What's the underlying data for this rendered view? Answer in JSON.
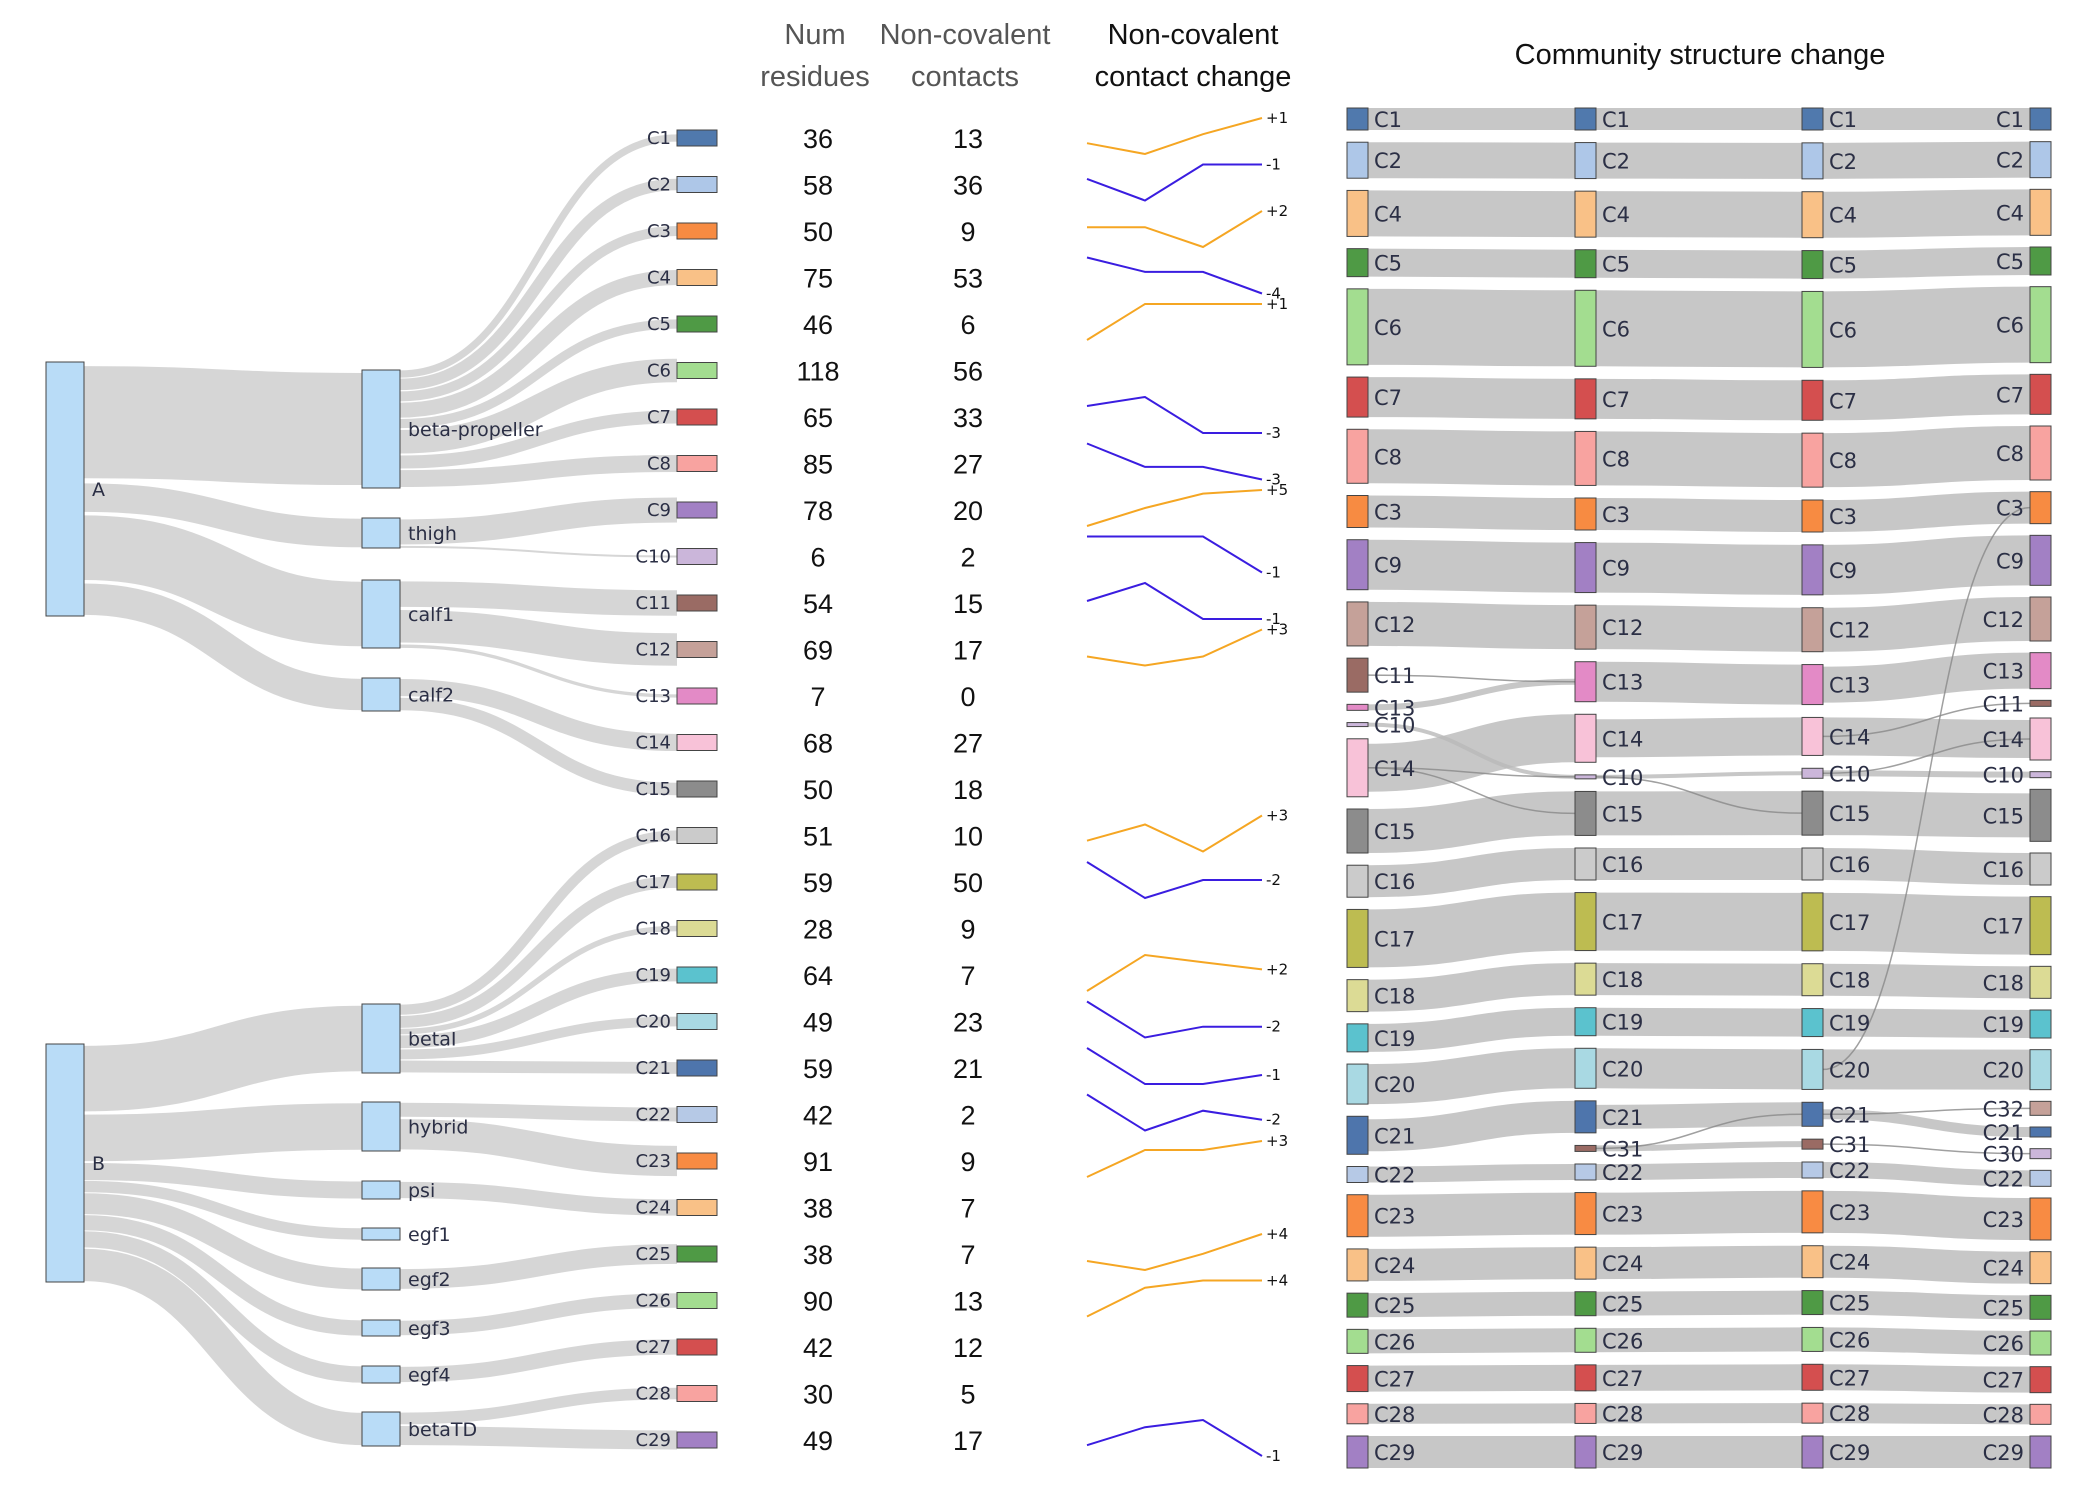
{
  "headers": {
    "num_residues": [
      "Num",
      "residues"
    ],
    "contacts": [
      "Non-covalent",
      "contacts"
    ],
    "change": [
      "Non-covalent",
      "contact change"
    ],
    "community": "Community structure change"
  },
  "chains": [
    {
      "name": "A",
      "domains": [
        "beta-propeller",
        "thigh",
        "calf1",
        "calf2"
      ]
    },
    {
      "name": "B",
      "domains": [
        "betaI",
        "hybrid",
        "psi",
        "egf1",
        "egf2",
        "egf3",
        "egf4",
        "betaTD"
      ]
    }
  ],
  "communities": [
    {
      "id": "C1",
      "domain": "beta-propeller",
      "residues": 36,
      "contacts": 13,
      "change": "+1",
      "trend": [
        0.3,
        0.0,
        0.55,
        1.0
      ],
      "color": "#5079ad"
    },
    {
      "id": "C2",
      "domain": "beta-propeller",
      "residues": 58,
      "contacts": 36,
      "change": "-1",
      "trend": [
        0.6,
        0.0,
        1.0,
        1.0
      ],
      "color": "#aec7e8"
    },
    {
      "id": "C3",
      "domain": "beta-propeller",
      "residues": 50,
      "contacts": 9,
      "change": "+2",
      "trend": [
        0.55,
        0.55,
        0.0,
        1.0
      ],
      "color": "#f78b42"
    },
    {
      "id": "C4",
      "domain": "beta-propeller",
      "residues": 75,
      "contacts": 53,
      "change": "-4",
      "trend": [
        1.0,
        0.6,
        0.6,
        0.0
      ],
      "color": "#f9c187"
    },
    {
      "id": "C5",
      "domain": "beta-propeller",
      "residues": 46,
      "contacts": 6,
      "change": "+1",
      "trend": [
        0.0,
        1.0,
        1.0,
        1.0
      ],
      "color": "#4f9a45"
    },
    {
      "id": "C6",
      "domain": "beta-propeller",
      "residues": 118,
      "contacts": 56,
      "change": "",
      "trend": [],
      "color": "#a3dd90"
    },
    {
      "id": "C7",
      "domain": "beta-propeller",
      "residues": 65,
      "contacts": 33,
      "change": "-3",
      "trend": [
        0.75,
        1.0,
        0.0,
        0.0
      ],
      "color": "#d44f4f"
    },
    {
      "id": "C8",
      "domain": "beta-propeller",
      "residues": 85,
      "contacts": 27,
      "change": "-3",
      "trend": [
        1.0,
        0.35,
        0.35,
        0.0
      ],
      "color": "#f8a3a0"
    },
    {
      "id": "C9",
      "domain": "thigh",
      "residues": 78,
      "contacts": 20,
      "change": "+5",
      "trend": [
        0.0,
        0.5,
        0.9,
        1.0
      ],
      "color": "#a280c4"
    },
    {
      "id": "C10",
      "domain": "thigh",
      "residues": 6,
      "contacts": 2,
      "change": "-1",
      "trend": [
        1.0,
        1.0,
        1.0,
        0.0
      ],
      "color": "#cbb6da"
    },
    {
      "id": "C11",
      "domain": "calf1",
      "residues": 54,
      "contacts": 15,
      "change": "-1",
      "trend": [
        0.5,
        1.0,
        0.0,
        0.0
      ],
      "color": "#9a6b64"
    },
    {
      "id": "C12",
      "domain": "calf1",
      "residues": 69,
      "contacts": 17,
      "change": "+3",
      "trend": [
        0.25,
        0.0,
        0.25,
        1.0
      ],
      "color": "#c5a199"
    },
    {
      "id": "C13",
      "domain": "calf1",
      "residues": 7,
      "contacts": 0,
      "change": "",
      "trend": [],
      "color": "#e38ac6"
    },
    {
      "id": "C14",
      "domain": "calf2",
      "residues": 68,
      "contacts": 27,
      "change": "",
      "trend": [],
      "color": "#f8c2d8"
    },
    {
      "id": "C15",
      "domain": "calf2",
      "residues": 50,
      "contacts": 18,
      "change": "",
      "trend": [],
      "color": "#8c8c8c"
    },
    {
      "id": "C16",
      "domain": "betaI",
      "residues": 51,
      "contacts": 10,
      "change": "+3",
      "trend": [
        0.3,
        0.75,
        0.0,
        1.0
      ],
      "color": "#cbcbcb"
    },
    {
      "id": "C17",
      "domain": "betaI",
      "residues": 59,
      "contacts": 50,
      "change": "-2",
      "trend": [
        1.0,
        0.0,
        0.5,
        0.5
      ],
      "color": "#bdbc51"
    },
    {
      "id": "C18",
      "domain": "betaI",
      "residues": 28,
      "contacts": 9,
      "change": "",
      "trend": [],
      "color": "#dcdb95"
    },
    {
      "id": "C19",
      "domain": "betaI",
      "residues": 64,
      "contacts": 7,
      "change": "+2",
      "trend": [
        0.0,
        1.0,
        0.8,
        0.6
      ],
      "color": "#5bc2ce"
    },
    {
      "id": "C20",
      "domain": "betaI",
      "residues": 49,
      "contacts": 23,
      "change": "-2",
      "trend": [
        1.0,
        0.0,
        0.3,
        0.3
      ],
      "color": "#a9d9e3"
    },
    {
      "id": "C21",
      "domain": "betaI",
      "residues": 59,
      "contacts": 21,
      "change": "-1",
      "trend": [
        1.0,
        0.0,
        0.0,
        0.25
      ],
      "color": "#4e75ac"
    },
    {
      "id": "C22",
      "domain": "hybrid",
      "residues": 42,
      "contacts": 2,
      "change": "-2",
      "trend": [
        1.0,
        0.0,
        0.55,
        0.3
      ],
      "color": "#b6c9e6"
    },
    {
      "id": "C23",
      "domain": "hybrid",
      "residues": 91,
      "contacts": 9,
      "change": "+3",
      "trend": [
        0.0,
        0.75,
        0.75,
        1.0
      ],
      "color": "#f88b43"
    },
    {
      "id": "C24",
      "domain": "psi",
      "residues": 38,
      "contacts": 7,
      "change": "",
      "trend": [],
      "color": "#f9c187"
    },
    {
      "id": "C25",
      "domain": "egf2",
      "residues": 38,
      "contacts": 7,
      "change": "+4",
      "trend": [
        0.25,
        0.0,
        0.45,
        1.0
      ],
      "color": "#4f9a45"
    },
    {
      "id": "C26",
      "domain": "egf3",
      "residues": 90,
      "contacts": 13,
      "change": "+4",
      "trend": [
        0.0,
        0.8,
        1.0,
        1.0
      ],
      "color": "#a3dd90"
    },
    {
      "id": "C27",
      "domain": "egf4",
      "residues": 42,
      "contacts": 12,
      "change": "",
      "trend": [],
      "color": "#d44f4f"
    },
    {
      "id": "C28",
      "domain": "betaTD",
      "residues": 30,
      "contacts": 5,
      "change": "",
      "trend": [],
      "color": "#f8a3a0"
    },
    {
      "id": "C29",
      "domain": "betaTD",
      "residues": 49,
      "contacts": 17,
      "change": "-1",
      "trend": [
        0.3,
        0.8,
        1.0,
        0.0
      ],
      "color": "#a280c4"
    }
  ],
  "community_columns": [
    [
      "C1",
      "C2",
      "C4",
      "C5",
      "C6",
      "C7",
      "C8",
      "C3",
      "C9",
      "C12",
      "C11",
      "C13",
      "C10",
      "C14",
      "C15",
      "C16",
      "C17",
      "C18",
      "C19",
      "C20",
      "C21",
      "C22",
      "C23",
      "C24",
      "C25",
      "C26",
      "C27",
      "C28",
      "C29"
    ],
    [
      "C1",
      "C2",
      "C4",
      "C5",
      "C6",
      "C7",
      "C8",
      "C3",
      "C9",
      "C12",
      "C13",
      "C14",
      "C10",
      "C15",
      "C16",
      "C17",
      "C18",
      "C19",
      "C20",
      "C21",
      "C31",
      "C22",
      "C23",
      "C24",
      "C25",
      "C26",
      "C27",
      "C28",
      "C29"
    ],
    [
      "C1",
      "C2",
      "C4",
      "C5",
      "C6",
      "C7",
      "C8",
      "C3",
      "C9",
      "C12",
      "C13",
      "C14",
      "C10",
      "C15",
      "C16",
      "C17",
      "C18",
      "C19",
      "C20",
      "C21",
      "C31",
      "C22",
      "C23",
      "C24",
      "C25",
      "C26",
      "C27",
      "C28",
      "C29"
    ],
    [
      "C1",
      "C2",
      "C4",
      "C5",
      "C6",
      "C7",
      "C8",
      "C3",
      "C9",
      "C12",
      "C13",
      "C11",
      "C14",
      "C10",
      "C15",
      "C16",
      "C17",
      "C18",
      "C19",
      "C20",
      "C32",
      "C21",
      "C30",
      "C22",
      "C23",
      "C24",
      "C25",
      "C26",
      "C27",
      "C28",
      "C29"
    ]
  ],
  "extra_colors": {
    "C30": "#cbb6da",
    "C31": "#9a6b64",
    "C32": "#c5a199"
  }
}
